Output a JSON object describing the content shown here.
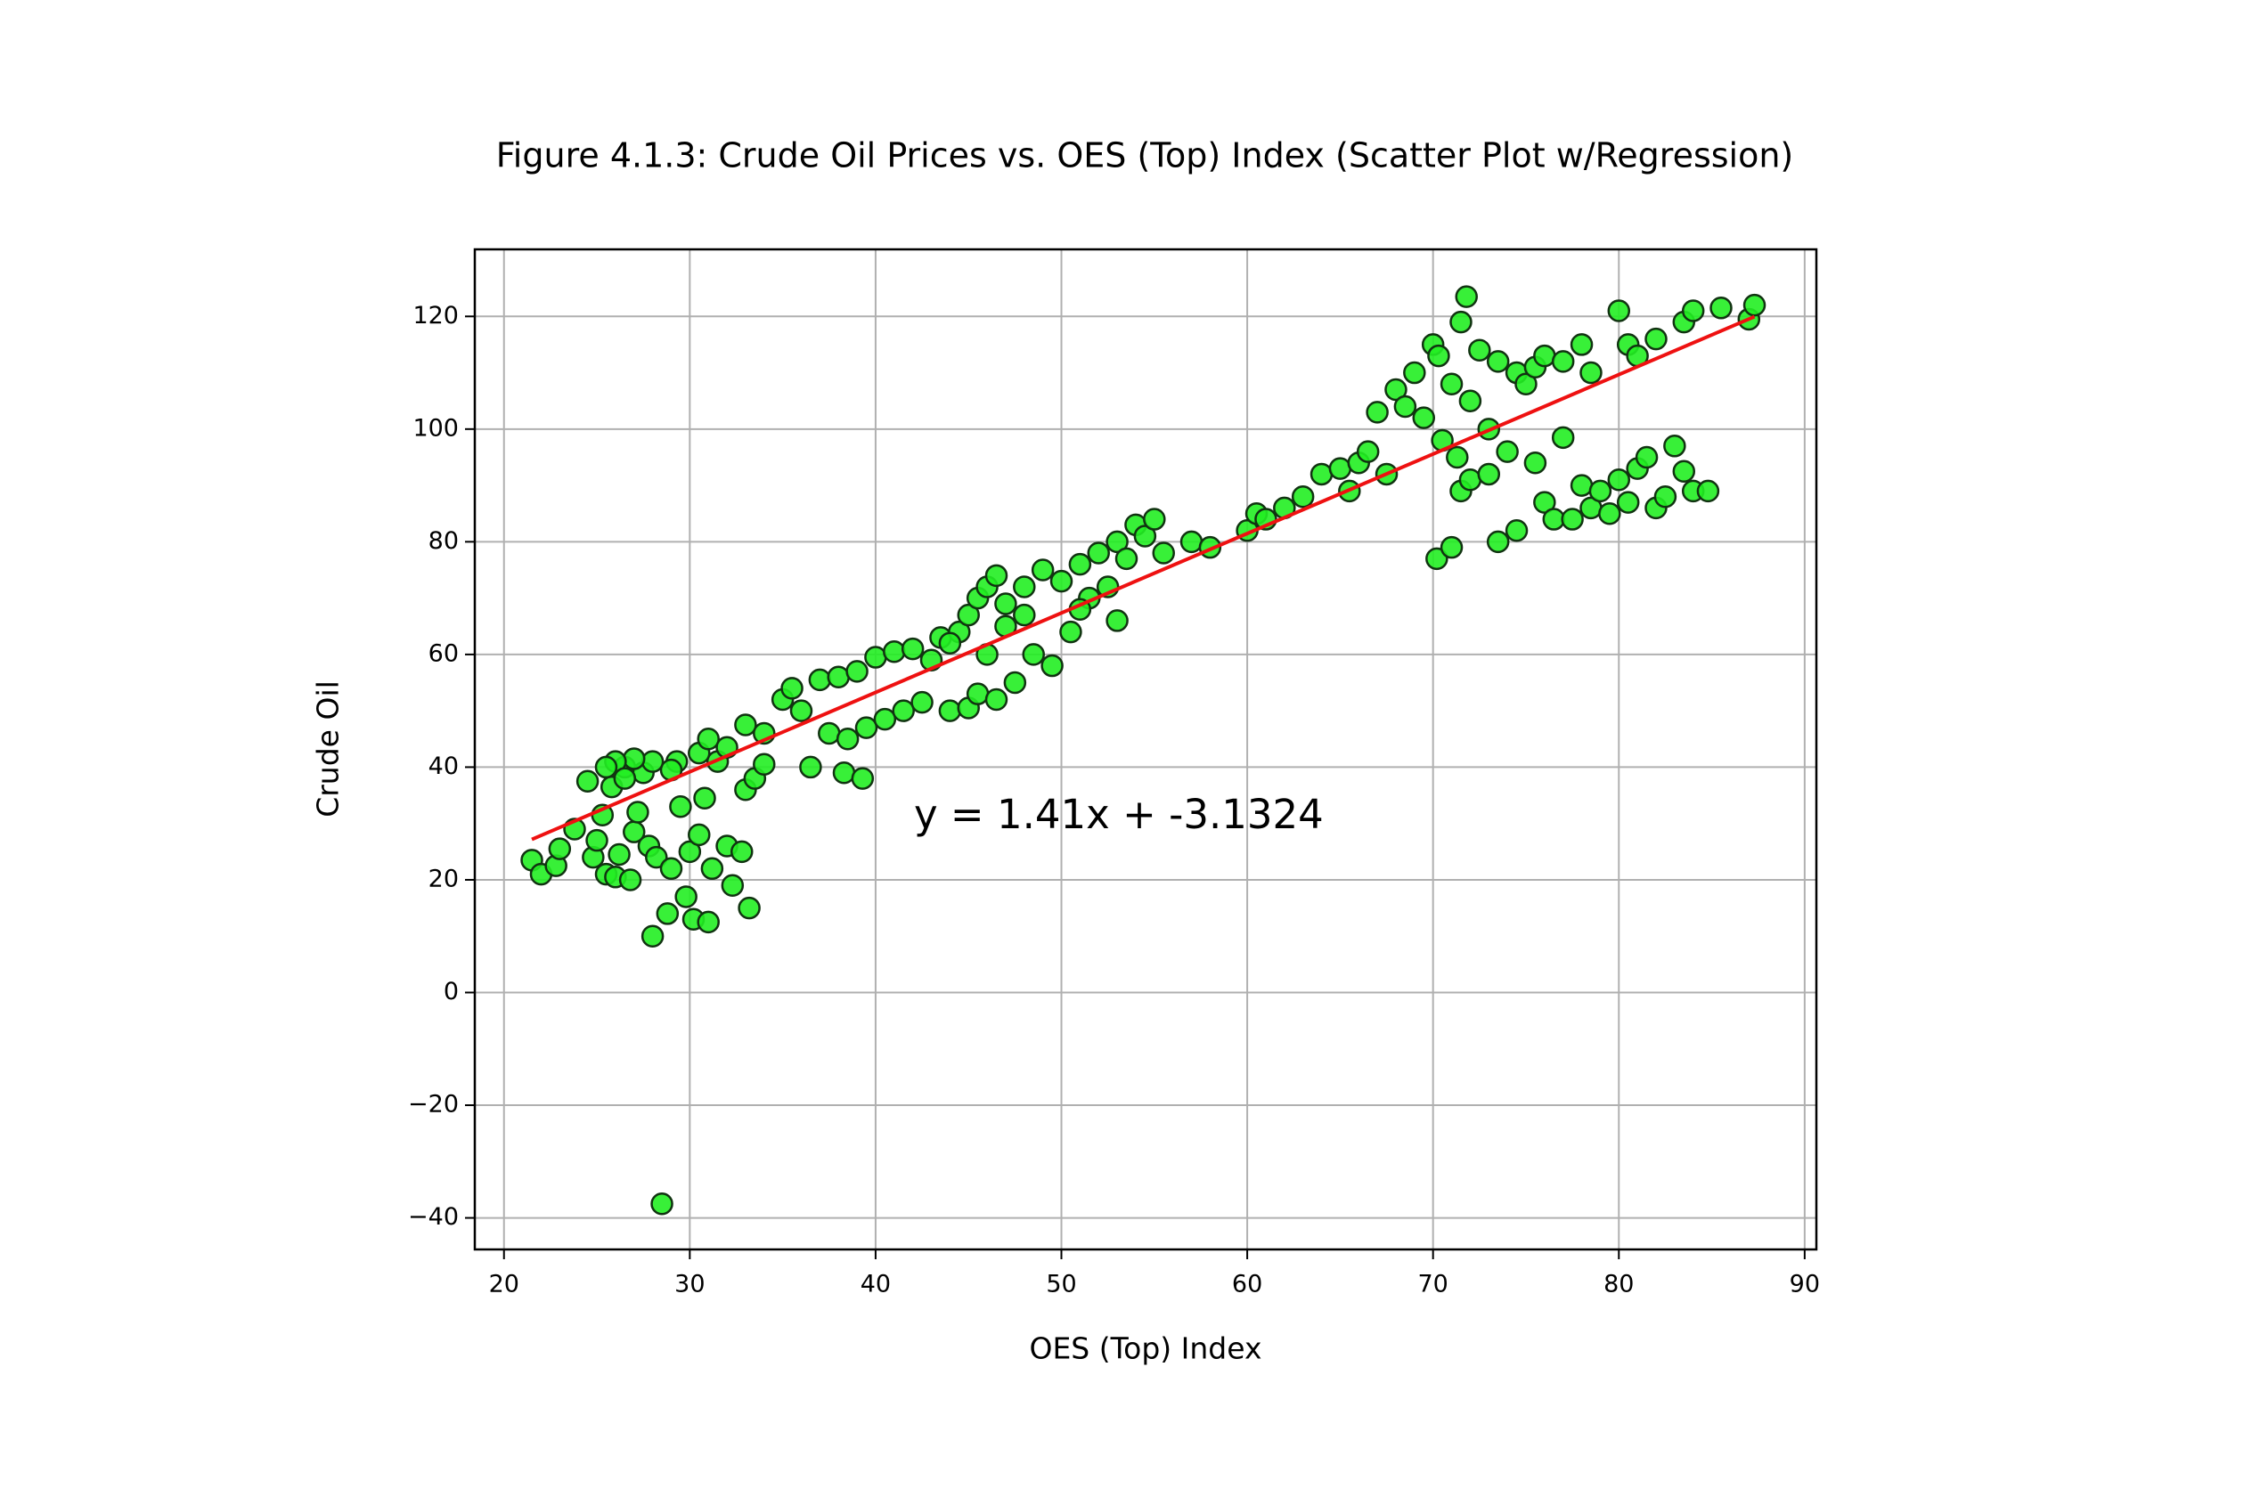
{
  "chart_data": {
    "type": "scatter",
    "title": "Figure 4.1.3: Crude Oil Prices vs. OES (Top) Index (Scatter Plot w/Regression)",
    "xlabel": "OES (Top) Index",
    "ylabel": "Crude Oil",
    "x": [
      21.5,
      22,
      22.8,
      23,
      23.8,
      24.5,
      24.8,
      25,
      25.3,
      25.5,
      25.8,
      26,
      26.2,
      26.5,
      26.8,
      27,
      27.2,
      27.5,
      27.8,
      28,
      28.2,
      28.5,
      28.8,
      29,
      29.3,
      29.5,
      29.8,
      30,
      30.2,
      30.5,
      30.8,
      31,
      31.2,
      31.5,
      32,
      32.3,
      32.8,
      33,
      33.2,
      33.5,
      34,
      30.5,
      31,
      32,
      33,
      34,
      29,
      28,
      27,
      26,
      25.5,
      26.5,
      35,
      35.5,
      36,
      36.5,
      37,
      37.5,
      38,
      38.3,
      38.5,
      39,
      39.3,
      39.5,
      40,
      40.5,
      41,
      41.5,
      42,
      42.5,
      43,
      43.5,
      44,
      44.5,
      45,
      45.5,
      45,
      45.5,
      46,
      46.5,
      46.5,
      47,
      47.5,
      48,
      48.5,
      49,
      49.5,
      50,
      50.5,
      51,
      51.5,
      52,
      52.5,
      53,
      53.5,
      54,
      54.5,
      55,
      55.5,
      47,
      48,
      44,
      46,
      51,
      53,
      57,
      58,
      60,
      60.5,
      61,
      62,
      63,
      64,
      65,
      65.5,
      66,
      66.5,
      67,
      67.5,
      68,
      68.5,
      69,
      69.5,
      70,
      70.3,
      70.5,
      71,
      71.3,
      71.5,
      71.8,
      72,
      72.5,
      73,
      73.5,
      74,
      74.5,
      75,
      75.5,
      76,
      77,
      78,
      78.5,
      80,
      80.5,
      81,
      82,
      83.5,
      84,
      85.5,
      87,
      87.3,
      70.2,
      71,
      71.5,
      72,
      73,
      73.5,
      74.5,
      75.5,
      76,
      76.5,
      77,
      77.5,
      78,
      78.5,
      79,
      79.5,
      80,
      80.5,
      81,
      81.5,
      82,
      82.5,
      83,
      83.5,
      84,
      84.8
    ],
    "values": [
      23.5,
      21,
      22.5,
      25.5,
      29,
      37.5,
      24,
      27,
      31.5,
      21,
      36.5,
      20.5,
      24.5,
      40,
      20,
      28.5,
      32,
      39,
      26,
      10,
      24,
      -37.5,
      14,
      22,
      41,
      33,
      17,
      25,
      13,
      28,
      34.5,
      12.5,
      22,
      41,
      26,
      19,
      25,
      36,
      15,
      38,
      40.5,
      42.5,
      45,
      43.5,
      47.5,
      46,
      39.5,
      41,
      41.5,
      41,
      40,
      38,
      52,
      54,
      50,
      40,
      55.5,
      46,
      56,
      39,
      45,
      57,
      38,
      47,
      59.5,
      48.5,
      60.5,
      50,
      61,
      51.5,
      59,
      63,
      50,
      64,
      50.5,
      53,
      67,
      70,
      72,
      52,
      74,
      69,
      55,
      72,
      60,
      75,
      58,
      73,
      64,
      76,
      70,
      78,
      72,
      80,
      77,
      83,
      81,
      84,
      78,
      65,
      67,
      62,
      60,
      68,
      66,
      80,
      79,
      82,
      85,
      84,
      86,
      88,
      92,
      93,
      89,
      94,
      96,
      103,
      92,
      107,
      104,
      110,
      102,
      115,
      113,
      98,
      108,
      95,
      119,
      123.5,
      105,
      114,
      100,
      112,
      96,
      110,
      108,
      111,
      113,
      112,
      115,
      110,
      121,
      115,
      113,
      116,
      119,
      121,
      121.5,
      119.5,
      122,
      77,
      79,
      89,
      91,
      92,
      80,
      82,
      94,
      87,
      84,
      98.5,
      84,
      90,
      86,
      89,
      85,
      91,
      87,
      93,
      95,
      86,
      88,
      97,
      92.5,
      89,
      89
    ],
    "color": "#22ee22",
    "edgecolor": "#113311",
    "fit": {
      "x": [
        21.5,
        87.3
      ],
      "values": [
        27.18,
        119.96
      ],
      "color": "#ee1111"
    },
    "annotation": "y = 1.41x + -3.1324",
    "annotation_color": "#1111ee",
    "xlim": [
      18.43,
      90.63
    ],
    "ylim": [
      -45.6,
      131.9
    ],
    "xticks": [
      20,
      30,
      40,
      50,
      60,
      70,
      80,
      90
    ],
    "yticks": [
      {
        "value": -40,
        "label": "−40"
      },
      {
        "value": -20,
        "label": "−20"
      },
      0,
      20,
      40,
      60,
      80,
      100,
      120
    ],
    "grid": true
  }
}
